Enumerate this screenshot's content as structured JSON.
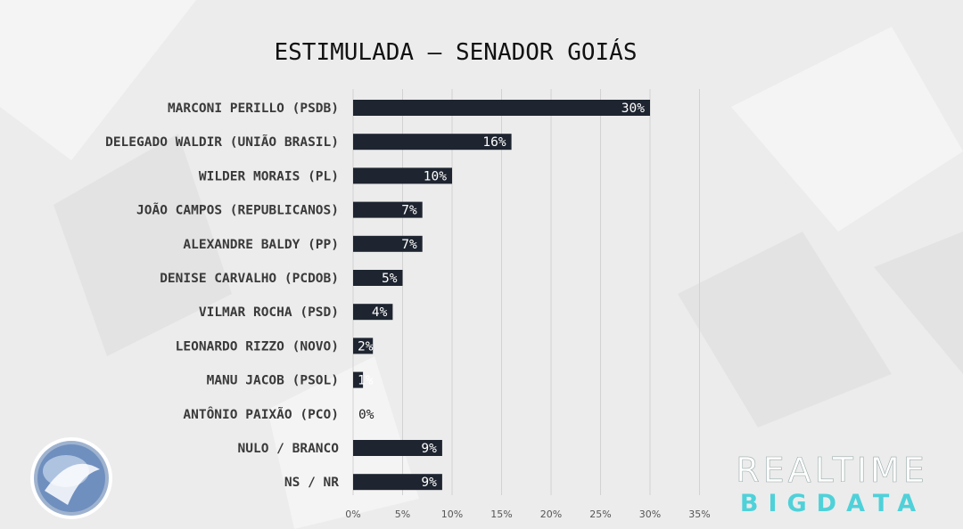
{
  "chart_data": {
    "type": "bar",
    "orientation": "horizontal",
    "title": "ESTIMULADA – SENADOR GOIÁS",
    "categories": [
      "MARCONI PERILLO (PSDB)",
      "DELEGADO WALDIR (UNIÃO BRASIL)",
      "WILDER MORAIS (PL)",
      "JOÃO CAMPOS (REPUBLICANOS)",
      "ALEXANDRE BALDY (PP)",
      "DENISE CARVALHO (PCDOB)",
      "VILMAR ROCHA (PSD)",
      "LEONARDO RIZZO (NOVO)",
      "MANU JACOB (PSOL)",
      "ANTÔNIO PAIXÃO (PCO)",
      "NULO / BRANCO",
      "NS / NR"
    ],
    "values": [
      30,
      16,
      10,
      7,
      7,
      5,
      4,
      2,
      1,
      0,
      9,
      9
    ],
    "value_labels": [
      "30%",
      "16%",
      "10%",
      "7%",
      "7%",
      "5%",
      "4%",
      "2%",
      "1%",
      "0%",
      "9%",
      "9%"
    ],
    "xlim": [
      0,
      35
    ],
    "xticks": [
      "0%",
      "5%",
      "10%",
      "15%",
      "20%",
      "25%",
      "30%",
      "35%"
    ],
    "grid": true,
    "bar_color": "#1e2530"
  },
  "branding": {
    "line1": "REALTIME",
    "line2": "BIGDATA",
    "accent": "#4fd1d9"
  },
  "logo": {
    "name": "record-tv-logo-icon"
  }
}
